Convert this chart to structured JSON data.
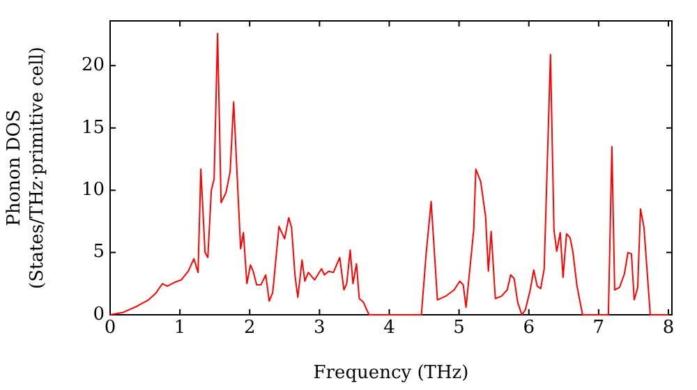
{
  "chart_data": {
    "type": "line",
    "xlabel": "Frequency (THz)",
    "ylabel": "Phonon DOS\n(States/THz·primitive cell)",
    "xlim": [
      0,
      8.05
    ],
    "ylim": [
      0,
      23.6
    ],
    "xticks": [
      0,
      1,
      2,
      3,
      4,
      5,
      6,
      7,
      8
    ],
    "yticks": [
      0,
      5,
      10,
      15,
      20
    ],
    "grid": false,
    "legend": false,
    "marker": "none",
    "line_style": "solid",
    "series": [
      {
        "color": "#ff0000",
        "x": [
          0,
          0.19,
          0.39,
          0.55,
          0.65,
          0.75,
          0.82,
          0.92,
          1.02,
          1.12,
          1.2,
          1.26,
          1.3,
          1.36,
          1.4,
          1.45,
          1.49,
          1.54,
          1.59,
          1.66,
          1.72,
          1.77,
          1.81,
          1.87,
          1.91,
          1.96,
          2.01,
          2.05,
          2.1,
          2.16,
          2.23,
          2.28,
          2.33,
          2.42,
          2.5,
          2.56,
          2.6,
          2.65,
          2.69,
          2.75,
          2.79,
          2.84,
          2.93,
          3.03,
          3.07,
          3.13,
          3.2,
          3.29,
          3.35,
          3.39,
          3.44,
          3.48,
          3.53,
          3.57,
          3.63,
          3.71,
          4.46,
          4.53,
          4.6,
          4.69,
          4.81,
          4.93,
          5.01,
          5.06,
          5.1,
          5.21,
          5.24,
          5.31,
          5.38,
          5.42,
          5.46,
          5.52,
          5.61,
          5.69,
          5.74,
          5.79,
          5.84,
          5.9,
          5.95,
          6.02,
          6.07,
          6.12,
          6.17,
          6.22,
          6.31,
          6.36,
          6.4,
          6.45,
          6.49,
          6.54,
          6.59,
          6.63,
          6.69,
          6.77,
          7.14,
          7.19,
          7.23,
          7.3,
          7.37,
          7.42,
          7.47,
          7.51,
          7.56,
          7.6,
          7.65,
          7.74,
          8.0
        ],
        "values": [
          0,
          0.2,
          0.7,
          1.2,
          1.7,
          2.5,
          2.3,
          2.6,
          2.8,
          3.5,
          4.5,
          3.4,
          11.7,
          5.0,
          4.6,
          10.0,
          10.9,
          22.6,
          9.0,
          9.8,
          11.5,
          17.1,
          12.4,
          5.3,
          6.6,
          2.5,
          4.0,
          3.5,
          2.4,
          2.4,
          3.2,
          1.1,
          1.8,
          7.1,
          6.1,
          7.8,
          7.0,
          3.1,
          1.4,
          4.4,
          2.7,
          3.4,
          2.8,
          3.7,
          3.2,
          3.5,
          3.4,
          4.6,
          2.0,
          2.5,
          5.2,
          2.5,
          4.1,
          1.3,
          1.0,
          0,
          0,
          5.0,
          9.1,
          1.2,
          1.5,
          2.0,
          2.7,
          2.4,
          0.6,
          6.8,
          11.7,
          10.7,
          7.9,
          3.5,
          6.7,
          1.3,
          1.5,
          2.0,
          3.2,
          2.9,
          1.0,
          0,
          0.4,
          2.0,
          3.6,
          2.3,
          2.1,
          3.7,
          20.9,
          6.8,
          5.1,
          6.6,
          3.0,
          6.5,
          6.2,
          5.1,
          2.3,
          0,
          0,
          13.5,
          2.0,
          2.2,
          3.3,
          5.0,
          4.9,
          1.2,
          2.2,
          8.5,
          7.0,
          0,
          0
        ]
      }
    ]
  }
}
